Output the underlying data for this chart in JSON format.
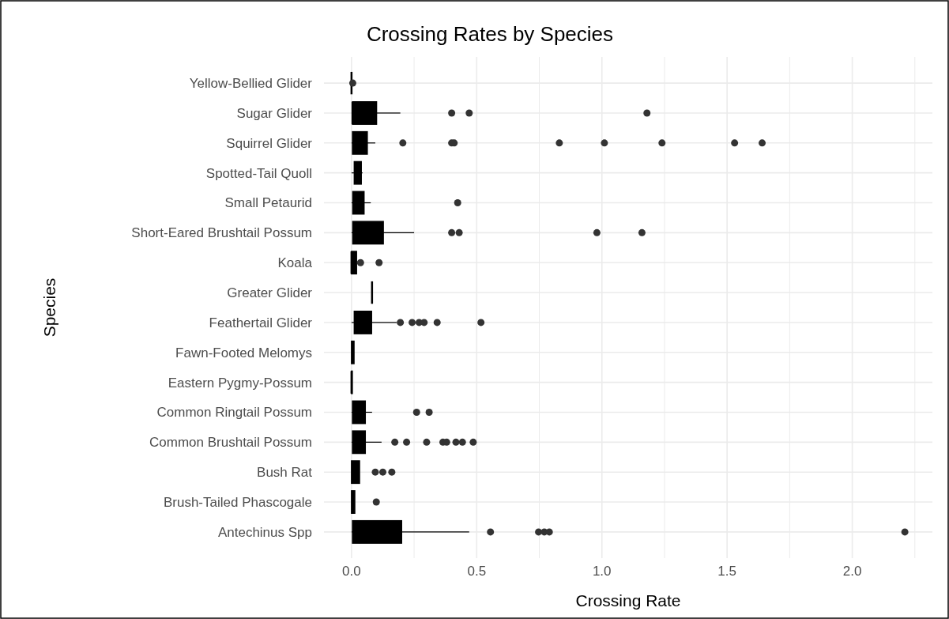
{
  "chart_data": {
    "type": "box",
    "title": "Crossing Rates by Species",
    "xlabel": "Crossing Rate",
    "ylabel": "Species",
    "orientation": "horizontal",
    "grid": true,
    "color": "#000000",
    "categories": [
      "Yellow-Bellied Glider",
      "Sugar Glider",
      "Squirrel Glider",
      "Spotted-Tail Quoll",
      "Small Petaurid",
      "Short-Eared Brushtail Possum",
      "Koala",
      "Greater Glider",
      "Feathertail Glider",
      "Fawn-Footed Melomys",
      "Eastern Pygmy-Possum",
      "Common Ringtail Possum",
      "Common Brushtail Possum",
      "Bush Rat",
      "Brush-Tailed Phascogale",
      "Antechinus Spp"
    ],
    "xlim": [
      -0.11,
      2.32
    ],
    "xticks": [
      {
        "value": 0,
        "label": "0.0"
      },
      {
        "value": 0.25,
        "label": null
      },
      {
        "value": 0.5,
        "label": "0.5"
      },
      {
        "value": 0.75,
        "label": null
      },
      {
        "value": 1,
        "label": "1.0"
      },
      {
        "value": 1.25,
        "label": null
      },
      {
        "value": 1.5,
        "label": "1.5"
      },
      {
        "value": 1.75,
        "label": null
      },
      {
        "value": 2,
        "label": "2.0"
      },
      {
        "value": 2.25,
        "label": null
      }
    ],
    "boxes": [
      {
        "low": 0,
        "q1": 0,
        "median": 0,
        "q3": 0,
        "high": 0,
        "outliers": [
          0.005
        ]
      },
      {
        "low": 0,
        "q1": 0.004,
        "median": 0.004,
        "q3": 0.1,
        "high": 0.195,
        "outliers": [
          0.4,
          0.47,
          1.18
        ]
      },
      {
        "low": 0,
        "q1": 0.004,
        "median": 0.01,
        "q3": 0.063,
        "high": 0.095,
        "outliers": [
          0.205,
          0.4,
          0.41,
          0.83,
          1.01,
          1.24,
          1.53,
          1.64
        ]
      },
      {
        "low": 0,
        "q1": 0.011,
        "median": 0.029,
        "q3": 0.039,
        "high": 0.044
      },
      {
        "low": 0,
        "q1": 0.005,
        "median": 0.01,
        "q3": 0.05,
        "high": 0.077,
        "outliers": [
          0.424
        ]
      },
      {
        "low": 0,
        "q1": 0.005,
        "median": 0.02,
        "q3": 0.127,
        "high": 0.25,
        "outliers": [
          0.4,
          0.43,
          0.98,
          1.16
        ]
      },
      {
        "low": 0,
        "q1": 0,
        "median": 0,
        "q3": 0.02,
        "high": 0.02,
        "outliers": [
          0.036,
          0.11
        ]
      },
      {
        "low": 0.082,
        "q1": 0.082,
        "median": 0.082,
        "q3": 0.082,
        "high": 0.082
      },
      {
        "low": 0,
        "q1": 0.011,
        "median": 0.039,
        "q3": 0.08,
        "high": 0.18,
        "outliers": [
          0.195,
          0.242,
          0.27,
          0.29,
          0.342,
          0.517
        ]
      },
      {
        "low": 0,
        "q1": 0,
        "median": 0.005,
        "q3": 0.01,
        "high": 0.01
      },
      {
        "low": 0,
        "q1": 0,
        "median": 0,
        "q3": 0.003,
        "high": 0.003
      },
      {
        "low": 0,
        "q1": 0.004,
        "median": 0.01,
        "q3": 0.055,
        "high": 0.082,
        "outliers": [
          0.26,
          0.31
        ]
      },
      {
        "low": 0,
        "q1": 0.004,
        "median": 0.01,
        "q3": 0.055,
        "high": 0.12,
        "outliers": [
          0.173,
          0.22,
          0.3,
          0.365,
          0.38,
          0.417,
          0.443,
          0.486
        ]
      },
      {
        "low": 0,
        "q1": 0,
        "median": 0.005,
        "q3": 0.032,
        "high": 0.032,
        "outliers": [
          0.095,
          0.125,
          0.161
        ]
      },
      {
        "low": 0,
        "q1": 0,
        "median": 0.005,
        "q3": 0.013,
        "high": 0.013,
        "outliers": [
          0.099
        ]
      },
      {
        "low": 0,
        "q1": 0.004,
        "median": 0.032,
        "q3": 0.2,
        "high": 0.47,
        "outliers": [
          0.555,
          0.747,
          0.77,
          0.79,
          2.21
        ]
      }
    ]
  }
}
